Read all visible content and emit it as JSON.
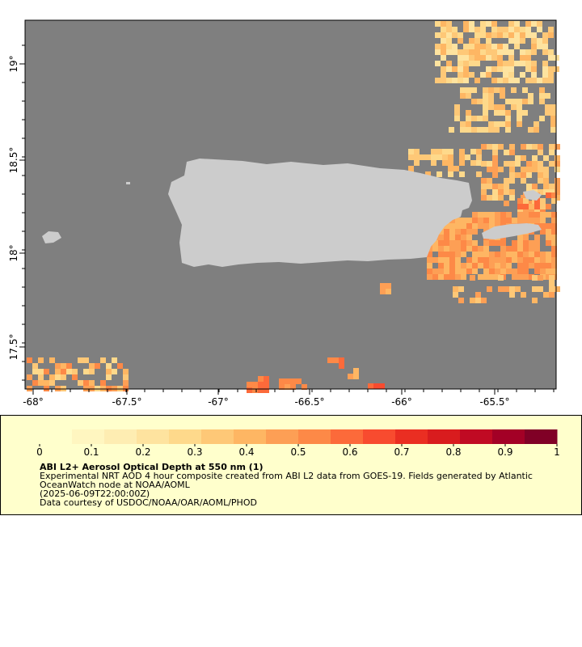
{
  "map": {
    "region": "Puerto Rico",
    "lon_ticks": [
      "-68°",
      "-67.5°",
      "-67°",
      "-66.5°",
      "-66°",
      "-65.5°"
    ],
    "lat_ticks": [
      "19°",
      "18.5°",
      "18°",
      "17.5°"
    ],
    "colors": {
      "ocean": "#7f7f7f",
      "land": "#cccccc",
      "no_data_bg": "#ffffff"
    }
  },
  "legend": {
    "scale_labels": [
      "0",
      "0.1",
      "0.2",
      "0.3",
      "0.4",
      "0.5",
      "0.6",
      "0.7",
      "0.8",
      "0.9",
      "1"
    ],
    "scale_min": 0,
    "scale_max": 1,
    "colors": [
      "#ffffcc",
      "#fff6c0",
      "#feedb2",
      "#fee39f",
      "#fed98b",
      "#fec877",
      "#feb663",
      "#fd9f55",
      "#fd8947",
      "#fc6a3a",
      "#f84b2f",
      "#ea2e22",
      "#d91c1e",
      "#c00a23",
      "#a30026",
      "#800026"
    ],
    "title": "ABI L2+ Aerosol Optical Depth at 550 nm (1)",
    "description": "Experimental NRT AOD 4 hour composite created from ABI L2 data from GOES-19. Fields generated by Atlantic OceanWatch node at NOAA/AOML",
    "time": "(2025-06-09T22:00:00Z)",
    "credit": "Data courtesy of USDOC/NOAA/OAR/AOML/PHOD"
  }
}
